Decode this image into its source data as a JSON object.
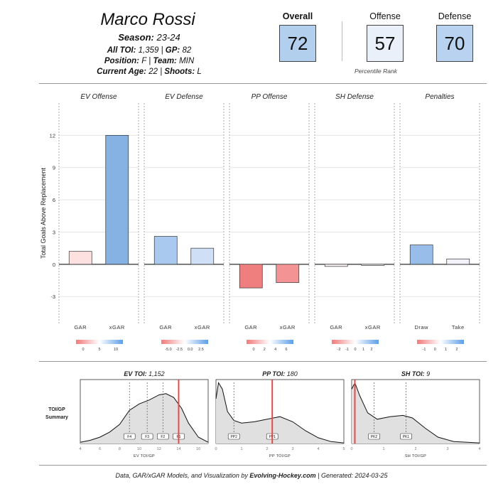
{
  "player": {
    "name": "Marco Rossi",
    "season_label": "Season:",
    "season": "23-24",
    "toi_label": "All TOI:",
    "toi": "1,359",
    "gp_label": "GP:",
    "gp": "82",
    "position_label": "Position:",
    "position": "F",
    "team_label": "Team:",
    "team": "MIN",
    "age_label": "Current Age:",
    "age": "22",
    "shoots_label": "Shoots:",
    "shoots": "L"
  },
  "percentiles": {
    "overall_label": "Overall",
    "overall": "72",
    "offense_label": "Offense",
    "offense": "57",
    "defense_label": "Defense",
    "defense": "70",
    "caption": "Percentile Rank"
  },
  "footer": {
    "prefix": "Data, GAR/xGAR Models, and Visualization by",
    "brand": "Evolving-Hockey.com",
    "suffix": "| Generated: 2024-03-25"
  },
  "chart_data": [
    {
      "type": "bar",
      "ylabel": "Total Goals Above Replacement",
      "ylim": [
        -5.5,
        15
      ],
      "yticks": [
        -3,
        0,
        3,
        6,
        9,
        12
      ],
      "grid": true,
      "panels": [
        {
          "title": "EV Offense",
          "categories": [
            "GAR",
            "xGAR"
          ],
          "values": [
            1.2,
            12.0
          ],
          "fills": [
            "#fde0e0",
            "#85b2e3"
          ],
          "scale": {
            "ticks": [
              "0",
              "5",
              "10"
            ],
            "colors": [
              "#f07a7a",
              "#ffffff",
              "#5d9ee8"
            ]
          }
        },
        {
          "title": "EV Defense",
          "categories": [
            "GAR",
            "xGAR"
          ],
          "values": [
            2.6,
            1.5
          ],
          "fills": [
            "#a9c9ee",
            "#cfe0f6"
          ],
          "scale": {
            "ticks": [
              "-5.0",
              "-2.5",
              "0.0",
              "2.5"
            ],
            "colors": [
              "#f07a7a",
              "#ffffff",
              "#5d9ee8"
            ]
          }
        },
        {
          "title": "PP Offense",
          "categories": [
            "GAR",
            "xGAR"
          ],
          "values": [
            -2.2,
            -1.7
          ],
          "fills": [
            "#ef7f7f",
            "#f39393"
          ],
          "scale": {
            "ticks": [
              "0",
              "2",
              "4",
              "6"
            ],
            "colors": [
              "#f07a7a",
              "#ffffff",
              "#5d9ee8"
            ]
          }
        },
        {
          "title": "SH Defense",
          "categories": [
            "GAR",
            "xGAR"
          ],
          "values": [
            -0.2,
            -0.1
          ],
          "fills": [
            "#fdf5f5",
            "#fdf8f8"
          ],
          "scale": {
            "ticks": [
              "-2",
              "-1",
              "0",
              "1",
              "2"
            ],
            "colors": [
              "#f07a7a",
              "#ffffff",
              "#5d9ee8"
            ]
          }
        },
        {
          "title": "Penalties",
          "categories": [
            "Draw",
            "Take"
          ],
          "values": [
            1.8,
            0.5
          ],
          "fills": [
            "#97bde8",
            "#f2f2fb"
          ],
          "scale": {
            "ticks": [
              "-1",
              "0",
              "1",
              "2"
            ],
            "colors": [
              "#f07a7a",
              "#ffffff",
              "#5d9ee8"
            ]
          }
        }
      ]
    },
    {
      "type": "area",
      "ylabel": "TOI/GP Summary",
      "panels": [
        {
          "title": "EV TOI:",
          "value": "1,152",
          "xlabel": "EV TOI/GP",
          "xlim": [
            4,
            17
          ],
          "xticks": [
            4,
            6,
            8,
            10,
            12,
            14,
            16
          ],
          "player_value": 14.0,
          "markers": [
            {
              "label": "F4",
              "x": 9.0
            },
            {
              "label": "F3",
              "x": 10.8
            },
            {
              "label": "F2",
              "x": 12.4
            },
            {
              "label": "F1",
              "x": 14.0
            }
          ],
          "density": [
            [
              4,
              0.02
            ],
            [
              5,
              0.05
            ],
            [
              6,
              0.1
            ],
            [
              7,
              0.18
            ],
            [
              8,
              0.3
            ],
            [
              9,
              0.52
            ],
            [
              10,
              0.62
            ],
            [
              11,
              0.68
            ],
            [
              12,
              0.76
            ],
            [
              12.7,
              0.78
            ],
            [
              13.5,
              0.72
            ],
            [
              14.3,
              0.55
            ],
            [
              15,
              0.32
            ],
            [
              16,
              0.1
            ],
            [
              17,
              0.02
            ]
          ]
        },
        {
          "title": "PP TOI:",
          "value": "180",
          "xlabel": "PP TOI/GP",
          "xlim": [
            0,
            5
          ],
          "xticks": [
            0,
            1,
            2,
            3,
            4,
            5
          ],
          "player_value": 2.2,
          "markers": [
            {
              "label": "PP2",
              "x": 0.7
            },
            {
              "label": "PP1",
              "x": 2.2
            }
          ],
          "density": [
            [
              0,
              0.7
            ],
            [
              0.1,
              0.95
            ],
            [
              0.25,
              0.85
            ],
            [
              0.45,
              0.5
            ],
            [
              0.7,
              0.36
            ],
            [
              1,
              0.32
            ],
            [
              1.5,
              0.34
            ],
            [
              2,
              0.38
            ],
            [
              2.5,
              0.42
            ],
            [
              3,
              0.34
            ],
            [
              3.5,
              0.2
            ],
            [
              4,
              0.09
            ],
            [
              4.5,
              0.03
            ],
            [
              5,
              0.01
            ]
          ]
        },
        {
          "title": "SH TOI:",
          "value": "9",
          "xlabel": "SH TOI/GP",
          "xlim": [
            0,
            4
          ],
          "xticks": [
            0,
            1,
            2,
            3,
            4
          ],
          "player_value": 0.1,
          "markers": [
            {
              "label": "PK2",
              "x": 0.7
            },
            {
              "label": "PK1",
              "x": 1.7
            }
          ],
          "density": [
            [
              0,
              0.85
            ],
            [
              0.1,
              0.95
            ],
            [
              0.25,
              0.75
            ],
            [
              0.5,
              0.48
            ],
            [
              0.8,
              0.38
            ],
            [
              1.2,
              0.42
            ],
            [
              1.6,
              0.44
            ],
            [
              1.9,
              0.4
            ],
            [
              2.3,
              0.24
            ],
            [
              2.7,
              0.1
            ],
            [
              3.2,
              0.03
            ],
            [
              4,
              0.01
            ]
          ]
        }
      ]
    }
  ]
}
